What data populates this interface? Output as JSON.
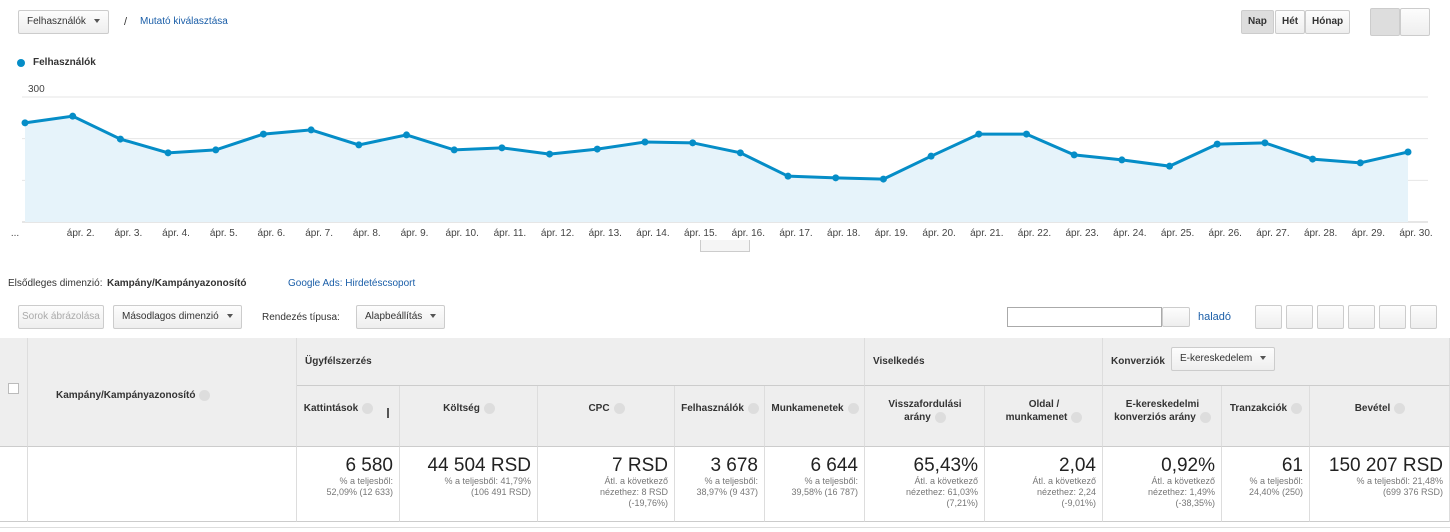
{
  "toolbar": {
    "metric": "Felhasználók",
    "separator": "/",
    "select_metric": "Mutató kiválasztása",
    "periods": [
      "Nap",
      "Hét",
      "Hónap"
    ]
  },
  "chart_data": {
    "type": "line",
    "categories": [
      "...",
      "ápr. 2.",
      "ápr. 3.",
      "ápr. 4.",
      "ápr. 5.",
      "ápr. 6.",
      "ápr. 7.",
      "ápr. 8.",
      "ápr. 9.",
      "ápr. 10.",
      "ápr. 11.",
      "ápr. 12.",
      "ápr. 13.",
      "ápr. 14.",
      "ápr. 15.",
      "ápr. 16.",
      "ápr. 17.",
      "ápr. 18.",
      "ápr. 19.",
      "ápr. 20.",
      "ápr. 21.",
      "ápr. 22.",
      "ápr. 23.",
      "ápr. 24.",
      "ápr. 25.",
      "ápr. 26.",
      "ápr. 27.",
      "ápr. 28.",
      "ápr. 29.",
      "ápr. 30."
    ],
    "series": [
      {
        "name": "Felhasználók",
        "color": "#058dc7",
        "values": [
          238,
          254,
          199,
          166,
          173,
          211,
          221,
          185,
          209,
          173,
          178,
          163,
          175,
          192,
          190,
          166,
          110,
          106,
          103,
          158,
          211,
          211,
          161,
          149,
          134,
          187,
          190,
          151,
          142,
          168
        ]
      }
    ],
    "ylim": [
      0,
      300
    ],
    "yticks": [
      100,
      200,
      300
    ],
    "grid": true,
    "legend": "top-left"
  },
  "dimension_bar": {
    "label": "Elsődleges dimenzió:",
    "primary": "Kampány/Kampányazonosító",
    "alternative": "Google Ads: Hirdetéscsoport"
  },
  "table_toolbar": {
    "plot_rows": "Sorok ábrázolása",
    "secondary": "Másodlagos dimenzió",
    "sort_label": "Rendezés típusa:",
    "sort_value": "Alapbeállítás",
    "advanced": "haladó"
  },
  "table": {
    "dimension": "Kampány/Kampányazonosító",
    "groups": [
      {
        "label": "Ügyfélszerzés",
        "columns": [
          {
            "label": [
              "Kattintások"
            ],
            "total": "6 580",
            "notes": [
              "% a teljesből:",
              "52,09% (12 633)"
            ]
          },
          {
            "label": [
              "Költség"
            ],
            "total": "44 504 RSD",
            "notes": [
              "% a teljesből: 41,79%",
              "(106 491 RSD)"
            ]
          },
          {
            "label": [
              "CPC"
            ],
            "total": "7 RSD",
            "notes": [
              "Átl. a következő",
              "nézethez: 8 RSD",
              "(-19,76%)"
            ]
          },
          {
            "label": [
              "Felhasználók"
            ],
            "total": "3 678",
            "notes": [
              "% a teljesből:",
              "38,97% (9 437)"
            ]
          },
          {
            "label": [
              "Munkamenetek"
            ],
            "total": "6 644",
            "notes": [
              "% a teljesből:",
              "39,58% (16 787)"
            ]
          }
        ]
      },
      {
        "label": "Viselkedés",
        "columns": [
          {
            "label": [
              "Visszafordulási",
              "arány"
            ],
            "total": "65,43%",
            "notes": [
              "Átl. a következő",
              "nézethez: 61,03%",
              "(7,21%)"
            ]
          },
          {
            "label": [
              "Oldal /",
              "munkamenet"
            ],
            "total": "2,04",
            "notes": [
              "Átl. a következő",
              "nézethez: 2,24",
              "(-9,01%)"
            ]
          }
        ]
      },
      {
        "label": "Konverziók",
        "selector": "E-kereskedelem",
        "columns": [
          {
            "label": [
              "E-kereskedelmi",
              "konverziós arány"
            ],
            "total": "0,92%",
            "notes": [
              "Átl. a következő",
              "nézethez: 1,49%",
              "(-38,35%)"
            ]
          },
          {
            "label": [
              "Tranzakciók"
            ],
            "total": "61",
            "notes": [
              "% a teljesből:",
              "24,40% (250)"
            ]
          },
          {
            "label": [
              "Bevétel"
            ],
            "total": "150 207 RSD",
            "notes": [
              "% a teljesből: 21,48%",
              "(699 376 RSD)"
            ]
          }
        ]
      }
    ]
  }
}
